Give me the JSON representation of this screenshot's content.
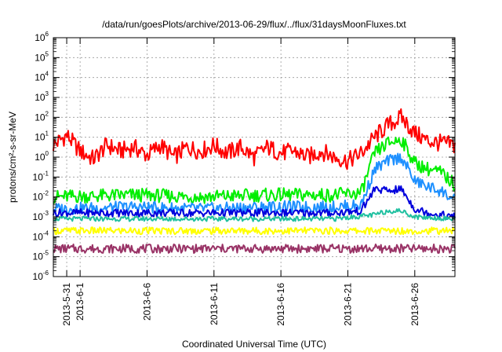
{
  "chart_data": {
    "type": "line",
    "title": "/data/run/goesPlots/archive/2013-06-29/flux/../flux/31daysMoonFluxes.txt",
    "xlabel": "Coordinated Universal Time (UTC)",
    "ylabel": "protons/cm²-s-sr-MeV",
    "yscale": "log",
    "ylim_exp": [
      -6,
      6
    ],
    "y_ticks": [
      {
        "base": "10",
        "exp": "-6"
      },
      {
        "base": "10",
        "exp": "-5"
      },
      {
        "base": "10",
        "exp": "-4"
      },
      {
        "base": "10",
        "exp": "-3"
      },
      {
        "base": "10",
        "exp": "-2"
      },
      {
        "base": "10",
        "exp": "-1"
      },
      {
        "base": "10",
        "exp": "0"
      },
      {
        "base": "10",
        "exp": "1"
      },
      {
        "base": "10",
        "exp": "2"
      },
      {
        "base": "10",
        "exp": "3"
      },
      {
        "base": "10",
        "exp": "4"
      },
      {
        "base": "10",
        "exp": "5"
      },
      {
        "base": "10",
        "exp": "6"
      }
    ],
    "x_range": [
      "2013-05-30",
      "2013-06-29"
    ],
    "x_ticks": [
      {
        "date": "2013-05-31",
        "label": "2013-5-31"
      },
      {
        "date": "2013-06-01",
        "label": "2013-6-1"
      },
      {
        "date": "2013-06-06",
        "label": "2013-6-6"
      },
      {
        "date": "2013-06-11",
        "label": "2013-6-11"
      },
      {
        "date": "2013-06-16",
        "label": "2013-6-16"
      },
      {
        "date": "2013-06-21",
        "label": "2013-6-21"
      },
      {
        "date": "2013-06-26",
        "label": "2013-6-26"
      }
    ],
    "grid": true,
    "series": [
      {
        "color": "#ff0000",
        "values": [
          {
            "x": "2013-05-30",
            "y_exp": 0.6
          },
          {
            "x": "2013-05-31",
            "y_exp": 1.1
          },
          {
            "x": "2013-06-01",
            "y_exp": 0.3
          },
          {
            "x": "2013-06-02",
            "y_exp": -0.1
          },
          {
            "x": "2013-06-03",
            "y_exp": 0.6
          },
          {
            "x": "2013-06-04",
            "y_exp": 0.3
          },
          {
            "x": "2013-06-05",
            "y_exp": 0.5
          },
          {
            "x": "2013-06-06",
            "y_exp": 0.1
          },
          {
            "x": "2013-06-07",
            "y_exp": 0.6
          },
          {
            "x": "2013-06-08",
            "y_exp": 0.0
          },
          {
            "x": "2013-06-09",
            "y_exp": 0.5
          },
          {
            "x": "2013-06-10",
            "y_exp": 0.3
          },
          {
            "x": "2013-06-11",
            "y_exp": 0.6
          },
          {
            "x": "2013-06-12",
            "y_exp": 0.2
          },
          {
            "x": "2013-06-13",
            "y_exp": 0.5
          },
          {
            "x": "2013-06-14",
            "y_exp": 0.0
          },
          {
            "x": "2013-06-15",
            "y_exp": 0.5
          },
          {
            "x": "2013-06-16",
            "y_exp": 0.2
          },
          {
            "x": "2013-06-17",
            "y_exp": 0.3
          },
          {
            "x": "2013-06-18",
            "y_exp": 0.0
          },
          {
            "x": "2013-06-19",
            "y_exp": 0.3
          },
          {
            "x": "2013-06-20",
            "y_exp": 0.0
          },
          {
            "x": "2013-06-21",
            "y_exp": -0.2
          },
          {
            "x": "2013-06-22",
            "y_exp": 0.2
          },
          {
            "x": "2013-06-23",
            "y_exp": 1.0
          },
          {
            "x": "2013-06-24",
            "y_exp": 1.6
          },
          {
            "x": "2013-06-25",
            "y_exp": 2.0
          },
          {
            "x": "2013-06-26",
            "y_exp": 1.2
          },
          {
            "x": "2013-06-27",
            "y_exp": 0.8
          },
          {
            "x": "2013-06-28",
            "y_exp": 0.7
          },
          {
            "x": "2013-06-29",
            "y_exp": 0.6
          }
        ]
      },
      {
        "color": "#00ee00",
        "values": [
          {
            "x": "2013-05-30",
            "y_exp": -2.0
          },
          {
            "x": "2013-06-05",
            "y_exp": -1.9
          },
          {
            "x": "2013-06-10",
            "y_exp": -2.0
          },
          {
            "x": "2013-06-15",
            "y_exp": -1.9
          },
          {
            "x": "2013-06-20",
            "y_exp": -1.9
          },
          {
            "x": "2013-06-22",
            "y_exp": -1.8
          },
          {
            "x": "2013-06-23",
            "y_exp": 0.2
          },
          {
            "x": "2013-06-24",
            "y_exp": 0.7
          },
          {
            "x": "2013-06-25",
            "y_exp": 0.9
          },
          {
            "x": "2013-06-26",
            "y_exp": -0.3
          },
          {
            "x": "2013-06-27",
            "y_exp": -0.6
          },
          {
            "x": "2013-06-28",
            "y_exp": -0.8
          },
          {
            "x": "2013-06-29",
            "y_exp": -1.4
          }
        ]
      },
      {
        "color": "#1e90ff",
        "values": [
          {
            "x": "2013-05-30",
            "y_exp": -2.6
          },
          {
            "x": "2013-06-05",
            "y_exp": -2.5
          },
          {
            "x": "2013-06-10",
            "y_exp": -2.6
          },
          {
            "x": "2013-06-15",
            "y_exp": -2.5
          },
          {
            "x": "2013-06-20",
            "y_exp": -2.5
          },
          {
            "x": "2013-06-22",
            "y_exp": -2.4
          },
          {
            "x": "2013-06-23",
            "y_exp": -0.6
          },
          {
            "x": "2013-06-24",
            "y_exp": -0.2
          },
          {
            "x": "2013-06-25",
            "y_exp": 0.0
          },
          {
            "x": "2013-06-26",
            "y_exp": -1.2
          },
          {
            "x": "2013-06-27",
            "y_exp": -1.5
          },
          {
            "x": "2013-06-28",
            "y_exp": -1.7
          },
          {
            "x": "2013-06-29",
            "y_exp": -2.2
          }
        ]
      },
      {
        "color": "#0000dd",
        "values": [
          {
            "x": "2013-05-30",
            "y_exp": -2.8
          },
          {
            "x": "2013-06-05",
            "y_exp": -2.8
          },
          {
            "x": "2013-06-10",
            "y_exp": -2.8
          },
          {
            "x": "2013-06-15",
            "y_exp": -2.8
          },
          {
            "x": "2013-06-20",
            "y_exp": -2.8
          },
          {
            "x": "2013-06-22",
            "y_exp": -2.7
          },
          {
            "x": "2013-06-23",
            "y_exp": -1.6
          },
          {
            "x": "2013-06-24",
            "y_exp": -1.7
          },
          {
            "x": "2013-06-25",
            "y_exp": -1.6
          },
          {
            "x": "2013-06-26",
            "y_exp": -2.6
          },
          {
            "x": "2013-06-27",
            "y_exp": -2.8
          },
          {
            "x": "2013-06-29",
            "y_exp": -3.0
          }
        ]
      },
      {
        "color": "#20c0a0",
        "values": [
          {
            "x": "2013-05-30",
            "y_exp": -3.1
          },
          {
            "x": "2013-06-10",
            "y_exp": -3.1
          },
          {
            "x": "2013-06-20",
            "y_exp": -3.1
          },
          {
            "x": "2013-06-23",
            "y_exp": -2.9
          },
          {
            "x": "2013-06-24",
            "y_exp": -2.7
          },
          {
            "x": "2013-06-25",
            "y_exp": -2.7
          },
          {
            "x": "2013-06-26",
            "y_exp": -3.0
          },
          {
            "x": "2013-06-29",
            "y_exp": -3.1
          }
        ]
      },
      {
        "color": "#ffff00",
        "values": [
          {
            "x": "2013-05-30",
            "y_exp": -3.7
          },
          {
            "x": "2013-06-10",
            "y_exp": -3.7
          },
          {
            "x": "2013-06-20",
            "y_exp": -3.7
          },
          {
            "x": "2013-06-25",
            "y_exp": -3.7
          },
          {
            "x": "2013-06-29",
            "y_exp": -3.7
          }
        ]
      },
      {
        "color": "#993366",
        "values": [
          {
            "x": "2013-05-30",
            "y_exp": -4.6
          },
          {
            "x": "2013-06-10",
            "y_exp": -4.6
          },
          {
            "x": "2013-06-20",
            "y_exp": -4.6
          },
          {
            "x": "2013-06-25",
            "y_exp": -4.6
          },
          {
            "x": "2013-06-29",
            "y_exp": -4.6
          }
        ]
      }
    ]
  }
}
